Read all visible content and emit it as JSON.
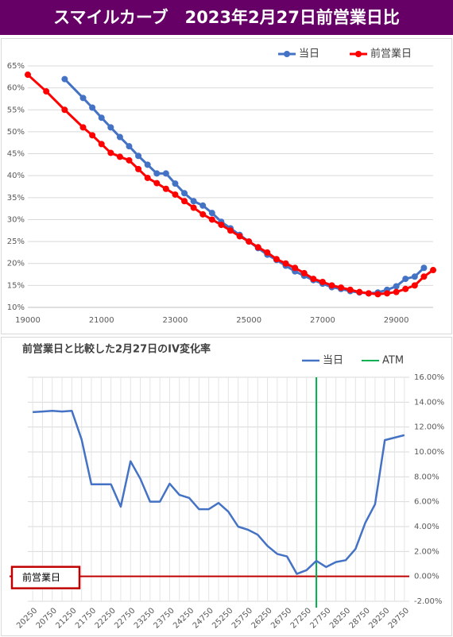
{
  "header": {
    "title": "スマイルカーブ　2023年2月27日前営業日比"
  },
  "chart_data": [
    {
      "type": "line",
      "legend": "top-right",
      "grid": true,
      "xlim": [
        19000,
        30000
      ],
      "xticks": [
        19000,
        21000,
        23000,
        25000,
        27000,
        29000
      ],
      "ylim": [
        10,
        65
      ],
      "yticks": [
        {
          "value": 10,
          "label": "10%"
        },
        {
          "value": 15,
          "label": "15%"
        },
        {
          "value": 20,
          "label": "20%"
        },
        {
          "value": 25,
          "label": "25%"
        },
        {
          "value": 30,
          "label": "30%"
        },
        {
          "value": 35,
          "label": "35%"
        },
        {
          "value": 40,
          "label": "40%"
        },
        {
          "value": 45,
          "label": "45%"
        },
        {
          "value": 50,
          "label": "50%"
        },
        {
          "value": 55,
          "label": "55%"
        },
        {
          "value": 60,
          "label": "60%"
        },
        {
          "value": 65,
          "label": "65%"
        }
      ],
      "series": [
        {
          "name": "当日",
          "color": "#4472c4",
          "x": [
            20000,
            20500,
            20750,
            21000,
            21250,
            21500,
            21750,
            22000,
            22250,
            22500,
            22750,
            23000,
            23250,
            23500,
            23750,
            24000,
            24250,
            24500,
            24750,
            25000,
            25250,
            25500,
            25750,
            26000,
            26250,
            26500,
            26750,
            27000,
            27250,
            27500,
            27750,
            28000,
            28250,
            28500,
            28750,
            29000,
            29250,
            29500,
            29750
          ],
          "values": [
            62,
            57.7,
            55.5,
            53.2,
            51,
            48.8,
            46.7,
            44.5,
            42.5,
            40.5,
            40.5,
            38.2,
            36,
            34.2,
            33.2,
            31.5,
            29.5,
            28,
            26.5,
            25,
            23.5,
            22,
            20.8,
            19.5,
            18.2,
            17.2,
            16.2,
            15.4,
            14.6,
            14.2,
            13.7,
            13.4,
            13.2,
            13.4,
            14,
            14.8,
            16.5,
            17,
            19
          ]
        },
        {
          "name": "前営業日",
          "color": "#ff0000",
          "x": [
            19000,
            19500,
            20000,
            20500,
            20750,
            21000,
            21250,
            21500,
            21750,
            22000,
            22250,
            22500,
            22750,
            23000,
            23250,
            23500,
            23750,
            24000,
            24250,
            24500,
            24750,
            25000,
            25250,
            25500,
            25750,
            26000,
            26250,
            26500,
            26750,
            27000,
            27250,
            27500,
            27750,
            28000,
            28250,
            28500,
            28750,
            29000,
            29250,
            29500,
            29750,
            30000
          ],
          "values": [
            63,
            59.2,
            55,
            51,
            49.2,
            47.2,
            45.2,
            44.3,
            43.5,
            41.5,
            39.5,
            38.3,
            37,
            35.7,
            34.2,
            32.7,
            31.2,
            30,
            28.8,
            27.5,
            26.2,
            25,
            23.7,
            22.5,
            21,
            20,
            19,
            17.8,
            16.5,
            15.8,
            15,
            14.5,
            14,
            13.5,
            13.2,
            13,
            13.2,
            13.5,
            14.2,
            15,
            17,
            18.5
          ]
        }
      ]
    },
    {
      "type": "line",
      "title": "前営業日と比較した2月27日のIV変化率",
      "legend": "top",
      "grid": true,
      "xlim": [
        20125,
        29875
      ],
      "xticks": [
        20250,
        20750,
        21250,
        21750,
        22250,
        22750,
        23250,
        23750,
        24250,
        24750,
        25250,
        25750,
        26250,
        26750,
        27250,
        27750,
        28250,
        28750,
        29250,
        29750
      ],
      "ylim": [
        -2,
        16
      ],
      "yticks": [
        {
          "value": -2,
          "label": "-2.00%"
        },
        {
          "value": 0,
          "label": "0.00%"
        },
        {
          "value": 2,
          "label": "2.00%"
        },
        {
          "value": 4,
          "label": "4.00%"
        },
        {
          "value": 6,
          "label": "6.00%"
        },
        {
          "value": 8,
          "label": "8.00%"
        },
        {
          "value": 10,
          "label": "10.00%"
        },
        {
          "value": 12,
          "label": "12.00%"
        },
        {
          "value": 14,
          "label": "14.00%"
        },
        {
          "value": 16,
          "label": "16.00%"
        }
      ],
      "series": [
        {
          "name": "当日",
          "color": "#4472c4",
          "x": [
            20250,
            20500,
            20750,
            21000,
            21250,
            21500,
            21750,
            22000,
            22250,
            22500,
            22750,
            23000,
            23250,
            23500,
            23750,
            24000,
            24250,
            24500,
            24750,
            25000,
            25250,
            25500,
            25750,
            26000,
            26250,
            26500,
            26750,
            27000,
            27250,
            27500,
            27750,
            28000,
            28250,
            28500,
            28750,
            29000,
            29250,
            29500,
            29750
          ],
          "values": [
            13.2,
            13.25,
            13.3,
            13.25,
            13.3,
            11,
            7.4,
            7.4,
            7.4,
            5.6,
            9.25,
            7.85,
            6,
            6,
            7.45,
            6.55,
            6.3,
            5.4,
            5.4,
            5.9,
            5.2,
            4,
            3.75,
            3.35,
            2.45,
            1.8,
            1.6,
            0.2,
            0.5,
            1.25,
            0.75,
            1.15,
            1.3,
            2.2,
            4.3,
            5.8,
            10.95,
            11.15,
            11.35
          ]
        }
      ],
      "reference_lines": [
        {
          "name": "ATM",
          "color": "#00b050",
          "x": 27500
        }
      ],
      "baseline": {
        "label": "前営業日",
        "value": 0,
        "color": "#c00000"
      }
    }
  ]
}
